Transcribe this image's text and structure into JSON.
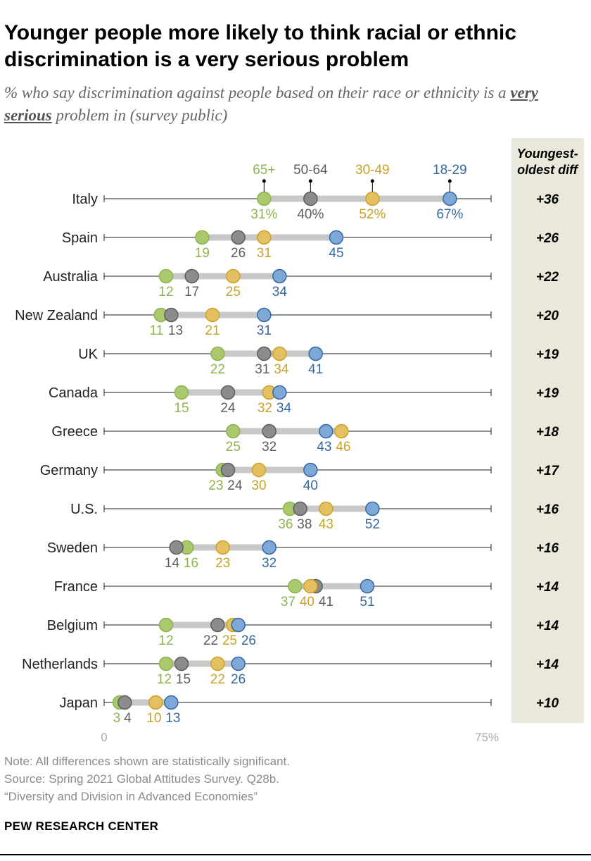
{
  "title": "Younger people more likely to think racial or ethnic discrimination is a very serious problem",
  "subtitle": {
    "lead": "% who say discrimination against people based on their race or ethnicity is a",
    "emphasis": "very serious",
    "tail": "problem in (survey public)"
  },
  "chart_data": {
    "type": "dot",
    "title": "Younger people more likely to think racial or ethnic discrimination is a very serious problem",
    "xlim": [
      0,
      75
    ],
    "x_tick_labels": [
      "0",
      "75%"
    ],
    "diff_header": [
      "Youngest-",
      "oldest diff"
    ],
    "series": [
      {
        "key": "a65",
        "name": "65+",
        "color": "#8db44f",
        "fill": "#a9c96c"
      },
      {
        "key": "a50",
        "name": "50-64",
        "color": "#5d5d5d",
        "fill": "#8c8c8c"
      },
      {
        "key": "a30",
        "name": "30-49",
        "color": "#c9a227",
        "fill": "#e5c063"
      },
      {
        "key": "a18",
        "name": "18-29",
        "color": "#35689f",
        "fill": "#7ea8d8"
      }
    ],
    "rows": [
      {
        "country": "Italy",
        "a65": 31,
        "a50": 40,
        "a30": 52,
        "a18": 67,
        "diff": "+36",
        "labels": {
          "a65": "31%",
          "a50": "40%",
          "a30": "52%",
          "a18": "67%"
        }
      },
      {
        "country": "Spain",
        "a65": 19,
        "a50": 26,
        "a30": 31,
        "a18": 45,
        "diff": "+26",
        "labels": {
          "a65": "19",
          "a50": "26",
          "a30": "31",
          "a18": "45"
        }
      },
      {
        "country": "Australia",
        "a65": 12,
        "a50": 17,
        "a30": 25,
        "a18": 34,
        "diff": "+22",
        "labels": {
          "a65": "12",
          "a50": "17",
          "a30": "25",
          "a18": "34"
        }
      },
      {
        "country": "New Zealand",
        "a65": 11,
        "a50": 13,
        "a30": 21,
        "a18": 31,
        "diff": "+20",
        "labels": {
          "a65": "11",
          "a50": "13",
          "a30": "21",
          "a18": "31"
        }
      },
      {
        "country": "UK",
        "a65": 22,
        "a50": 31,
        "a30": 34,
        "a18": 41,
        "diff": "+19",
        "labels": {
          "a65": "22",
          "a50": "31",
          "a30": "34",
          "a18": "41"
        }
      },
      {
        "country": "Canada",
        "a65": 15,
        "a50": 24,
        "a30": 32,
        "a18": 34,
        "diff": "+19",
        "labels": {
          "a65": "15",
          "a50": "24",
          "a30": "32",
          "a18": "34"
        }
      },
      {
        "country": "Greece",
        "a65": 25,
        "a50": 32,
        "a30": 46,
        "a18": 43,
        "diff": "+18",
        "labels": {
          "a65": "25",
          "a50": "32",
          "a30": "46",
          "a18": "43"
        }
      },
      {
        "country": "Germany",
        "a65": 23,
        "a50": 24,
        "a30": 30,
        "a18": 40,
        "diff": "+17",
        "labels": {
          "a65": "23",
          "a50": "24",
          "a30": "30",
          "a18": "40"
        }
      },
      {
        "country": "U.S.",
        "a65": 36,
        "a50": 38,
        "a30": 43,
        "a18": 52,
        "diff": "+16",
        "labels": {
          "a65": "36",
          "a50": "38",
          "a30": "43",
          "a18": "52"
        }
      },
      {
        "country": "Sweden",
        "a65": 16,
        "a50": 14,
        "a30": 23,
        "a18": 32,
        "diff": "+16",
        "labels": {
          "a65": "16",
          "a50": "14",
          "a30": "23",
          "a18": "32"
        }
      },
      {
        "country": "France",
        "a65": 37,
        "a50": 41,
        "a30": 40,
        "a18": 51,
        "diff": "+14",
        "labels": {
          "a65": "37",
          "a50": "41",
          "a30": "40",
          "a18": "51"
        }
      },
      {
        "country": "Belgium",
        "a65": 12,
        "a50": 22,
        "a30": 25,
        "a18": 26,
        "diff": "+14",
        "labels": {
          "a65": "12",
          "a50": "22",
          "a30": "25",
          "a18": "26"
        }
      },
      {
        "country": "Netherlands",
        "a65": 12,
        "a50": 15,
        "a30": 22,
        "a18": 26,
        "diff": "+14",
        "labels": {
          "a65": "12",
          "a50": "15",
          "a30": "22",
          "a18": "26"
        }
      },
      {
        "country": "Japan",
        "a65": 3,
        "a50": 4,
        "a30": 10,
        "a18": 13,
        "diff": "+10",
        "labels": {
          "a65": "3",
          "a50": "4",
          "a30": "10",
          "a18": "13"
        }
      }
    ]
  },
  "notes": {
    "note": "Note: All differences shown are statistically significant.",
    "source": "Source: Spring 2021 Global Attitudes Survey. Q28b.",
    "report": "“Diversity and Division in Advanced Economies”"
  },
  "brand": "PEW RESEARCH CENTER"
}
